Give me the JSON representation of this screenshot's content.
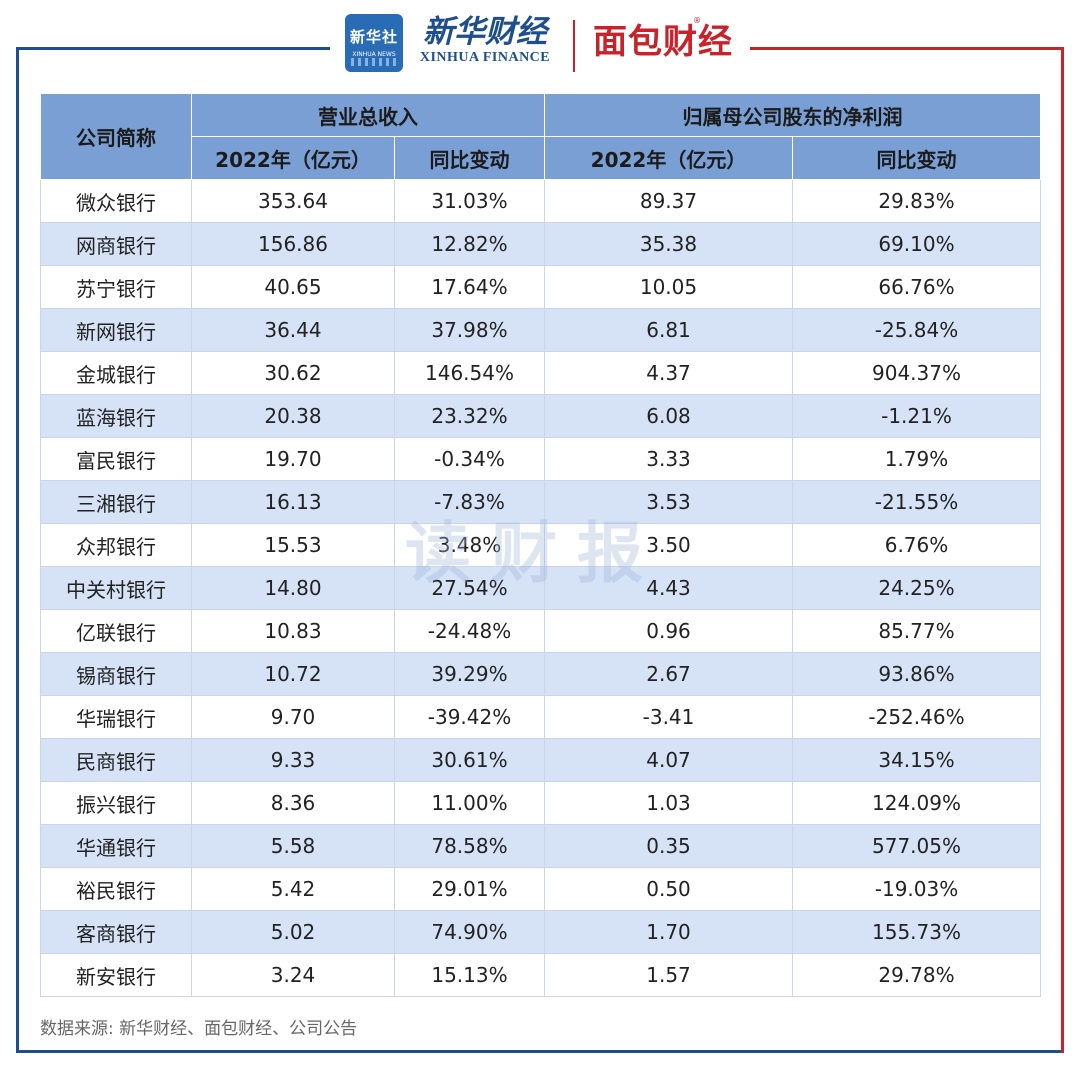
{
  "header": {
    "xinhua_logo_text": "新华社",
    "xinhua_logo_sub": "XINHUA NEWS",
    "xinhua_brand_cn": "新华财经",
    "xinhua_brand_en": "XINHUA FINANCE",
    "mianbao_brand": "面包财经",
    "mianbao_reg": "®"
  },
  "colors": {
    "header_bg": "#7a9fd4",
    "row_alt": "#d6e2f6",
    "frame_blue": "#1f4e8c",
    "frame_red": "#c8222a"
  },
  "table": {
    "headers": {
      "company": "公司简称",
      "revenue_group": "营业总收入",
      "profit_group": "归属母公司股东的净利润",
      "revenue_2022": "2022年（亿元）",
      "revenue_yoy": "同比变动",
      "profit_2022": "2022年（亿元）",
      "profit_yoy": "同比变动"
    },
    "rows": [
      [
        "微众银行",
        "353.64",
        "31.03%",
        "89.37",
        "29.83%"
      ],
      [
        "网商银行",
        "156.86",
        "12.82%",
        "35.38",
        "69.10%"
      ],
      [
        "苏宁银行",
        "40.65",
        "17.64%",
        "10.05",
        "66.76%"
      ],
      [
        "新网银行",
        "36.44",
        "37.98%",
        "6.81",
        "-25.84%"
      ],
      [
        "金城银行",
        "30.62",
        "146.54%",
        "4.37",
        "904.37%"
      ],
      [
        "蓝海银行",
        "20.38",
        "23.32%",
        "6.08",
        "-1.21%"
      ],
      [
        "富民银行",
        "19.70",
        "-0.34%",
        "3.33",
        "1.79%"
      ],
      [
        "三湘银行",
        "16.13",
        "-7.83%",
        "3.53",
        "-21.55%"
      ],
      [
        "众邦银行",
        "15.53",
        "3.48%",
        "3.50",
        "6.76%"
      ],
      [
        "中关村银行",
        "14.80",
        "27.54%",
        "4.43",
        "24.25%"
      ],
      [
        "亿联银行",
        "10.83",
        "-24.48%",
        "0.96",
        "85.77%"
      ],
      [
        "锡商银行",
        "10.72",
        "39.29%",
        "2.67",
        "93.86%"
      ],
      [
        "华瑞银行",
        "9.70",
        "-39.42%",
        "-3.41",
        "-252.46%"
      ],
      [
        "民商银行",
        "9.33",
        "30.61%",
        "4.07",
        "34.15%"
      ],
      [
        "振兴银行",
        "8.36",
        "11.00%",
        "1.03",
        "124.09%"
      ],
      [
        "华通银行",
        "5.58",
        "78.58%",
        "0.35",
        "577.05%"
      ],
      [
        "裕民银行",
        "5.42",
        "29.01%",
        "0.50",
        "-19.03%"
      ],
      [
        "客商银行",
        "5.02",
        "74.90%",
        "1.70",
        "155.73%"
      ],
      [
        "新安银行",
        "3.24",
        "15.13%",
        "1.57",
        "29.78%"
      ]
    ]
  },
  "watermark": "读财报",
  "source": "数据来源: 新华财经、面包财经、公司公告"
}
